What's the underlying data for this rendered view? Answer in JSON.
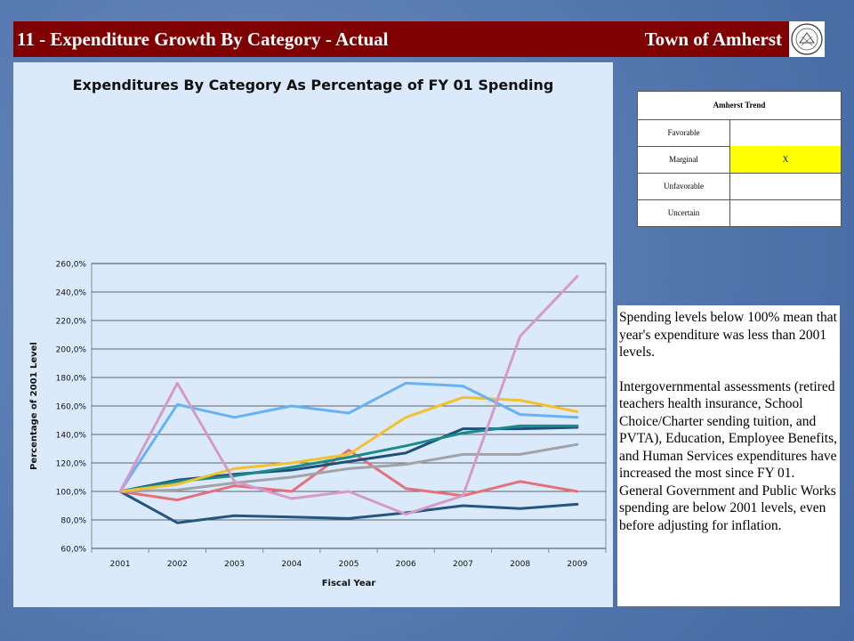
{
  "header": {
    "title": "11 - Expenditure Growth By Category - Actual",
    "town": "Town of Amherst"
  },
  "chart_data": {
    "type": "line",
    "title": "Expenditures By Category As Percentage of FY 01 Spending",
    "xlabel": "Fiscal Year",
    "ylabel": "Percentage of 2001 Level",
    "ylim": [
      60,
      260
    ],
    "yticks": [
      "60,0%",
      "80,0%",
      "100,0%",
      "120,0%",
      "140,0%",
      "160,0%",
      "180,0%",
      "200,0%",
      "220,0%",
      "240,0%",
      "260,0%"
    ],
    "grid": true,
    "x": [
      "2001",
      "2002",
      "2003",
      "2004",
      "2005",
      "2006",
      "2007",
      "2008",
      "2009"
    ],
    "series": [
      {
        "color": "#e07a8a",
        "values": [
          100,
          176,
          107,
          95,
          100,
          84,
          97,
          209,
          251
        ],
        "stroke": "#d49ac8"
      },
      {
        "color": "#66b2f2",
        "values": [
          100,
          161,
          152,
          160,
          155,
          176,
          174,
          154,
          152
        ]
      },
      {
        "color": "#f2c12e",
        "values": [
          100,
          105,
          116,
          120,
          126,
          152,
          166,
          164,
          156
        ]
      },
      {
        "color": "#1b8a8a",
        "values": [
          100,
          107,
          111,
          117,
          124,
          132,
          141,
          146,
          146
        ]
      },
      {
        "color": "#1f4e79",
        "values": [
          100,
          108,
          112,
          115,
          121,
          127,
          144,
          144,
          145
        ]
      },
      {
        "color": "#a0a3a8",
        "values": [
          100,
          101,
          106,
          110,
          116,
          119,
          126,
          126,
          133
        ]
      },
      {
        "color": "#e3707a",
        "values": [
          100,
          94,
          104,
          100,
          129,
          102,
          97,
          107,
          100
        ]
      },
      {
        "color": "#24567f",
        "values": [
          100,
          78,
          83,
          82,
          81,
          85,
          90,
          88,
          91
        ]
      }
    ]
  },
  "trend": {
    "header": "Amherst Trend",
    "rows": [
      {
        "label": "Favorable",
        "mark": ""
      },
      {
        "label": "Marginal",
        "mark": "X"
      },
      {
        "label": "Unfavorable",
        "mark": ""
      },
      {
        "label": "Uncertain",
        "mark": ""
      }
    ],
    "highlight_color": "#ffff00"
  },
  "notes": {
    "p1": "Spending levels below 100% mean that year's expenditure was less than 2001 levels.",
    "p2": "Intergovernmental assessments (retired teachers health insurance, School Choice/Charter sending tuition, and PVTA),  Education, Employee Benefits, and Human Services expenditures have increased the most since FY 01.  General Government and Public Works spending are below 2001 levels, even before adjusting for inflation."
  },
  "colors": {
    "title_bar": "#7f0000",
    "background": "#5b7db4",
    "chart_panel": "#dbeafa"
  }
}
